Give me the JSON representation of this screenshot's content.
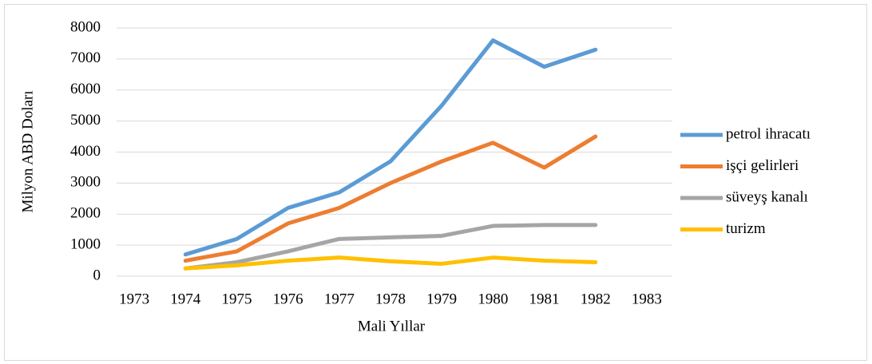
{
  "chart_data": {
    "type": "line",
    "xlabel": "Mali Yıllar",
    "ylabel": "Milyon ABD Doları",
    "categories": [
      "1973",
      "1974",
      "1975",
      "1976",
      "1977",
      "1978",
      "1979",
      "1980",
      "1981",
      "1982",
      "1983"
    ],
    "series": [
      {
        "name": "petrol ihracatı",
        "color": "#5b9bd5",
        "values": [
          null,
          700,
          1200,
          2200,
          2700,
          3700,
          5500,
          7600,
          6750,
          7300,
          null
        ]
      },
      {
        "name": "işçi gelirleri",
        "color": "#ed7d31",
        "values": [
          null,
          500,
          800,
          1700,
          2200,
          3000,
          3700,
          4300,
          3500,
          4500,
          null
        ]
      },
      {
        "name": "süveyş kanalı",
        "color": "#a5a5a5",
        "values": [
          null,
          250,
          450,
          800,
          1200,
          1250,
          1300,
          1620,
          1650,
          1650,
          null
        ]
      },
      {
        "name": "turizm",
        "color": "#ffc000",
        "values": [
          null,
          250,
          350,
          500,
          600,
          480,
          400,
          600,
          500,
          450,
          null
        ]
      }
    ],
    "ylim": [
      0,
      8000
    ],
    "yticks": [
      0,
      1000,
      2000,
      3000,
      4000,
      5000,
      6000,
      7000,
      8000
    ],
    "grid": true,
    "legend": "right"
  }
}
